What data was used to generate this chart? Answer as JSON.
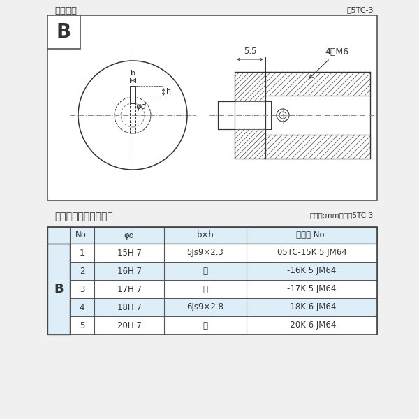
{
  "bg_color": "#f0f0f0",
  "inner_bg": "#ffffff",
  "line_color": "#333333",
  "dim_color": "#444444",
  "hatch_color": "#666666",
  "hatch_bg": "#ffffff",
  "diagram_title": "軸穴形状",
  "diagram_fig_no": "図5TC-3",
  "table_title": "軸穴形状コード一覧表",
  "table_unit": "（単位:mm）　表5TC-3",
  "table_header": [
    "No.",
    "φd",
    "b×h",
    "コード No."
  ],
  "table_row_label": "B",
  "table_rows": [
    [
      "1",
      "15H 7",
      "5Js9×2.3",
      "05TC-15K 5 JM64"
    ],
    [
      "2",
      "16H 7",
      "〃",
      "-16K 5 JM64"
    ],
    [
      "3",
      "17H 7",
      "〃",
      "-17K 5 JM64"
    ],
    [
      "4",
      "18H 7",
      "6Js9×2.8",
      "-18K 6 JM64"
    ],
    [
      "5",
      "20H 7",
      "〃",
      "-20K 6 JM64"
    ]
  ],
  "row_colors": [
    "#ffffff",
    "#ddeef8",
    "#ffffff",
    "#ddeef8",
    "#ffffff"
  ],
  "header_bg": "#ddeef8",
  "b_cell_bg": "#ddeef8",
  "dim_label_55": "5.5",
  "dim_label_4M6": "4－M6"
}
